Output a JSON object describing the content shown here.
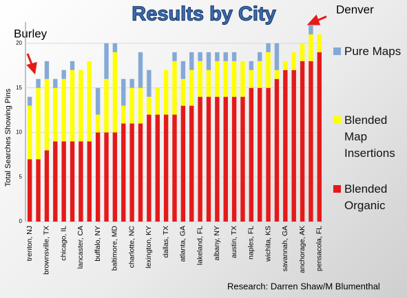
{
  "chart_data": {
    "type": "stacked_bar",
    "title": "Results by City",
    "y_label": "Total Searches Showing Pins",
    "annotations": [
      "Denver",
      "Burley",
      "Research: Darren Shaw/M Blumenthal"
    ],
    "categories": [
      "trenton, NJ",
      null,
      "brownsville, TX",
      null,
      "chicago, IL",
      null,
      "lancaster, CA",
      null,
      "buffalo, NY",
      null,
      "baltimore, MD",
      null,
      "charlotte, NC",
      null,
      "lexington, KY",
      null,
      "dallas, TX",
      null,
      "atlanta, GA",
      null,
      "lakeland, FL",
      null,
      "albany, NY",
      null,
      "austin, TX",
      null,
      "naples, FL",
      null,
      "wichita, KS",
      null,
      "savannah, GA",
      null,
      "anchorage, AK",
      null,
      "pensacola, FL"
    ],
    "series": [
      {
        "name": "Blended Organic",
        "color": "#e41a1a",
        "values": [
          7,
          7,
          8,
          9,
          9,
          9,
          9,
          9,
          10,
          10,
          10,
          11,
          11,
          11,
          12,
          12,
          12,
          12,
          13,
          13,
          14,
          14,
          14,
          14,
          14,
          14,
          15,
          15,
          15,
          16,
          17,
          17,
          18,
          18,
          19
        ]
      },
      {
        "name": "Blended Map Insertions",
        "color": "#ffff00",
        "values": [
          6,
          8,
          8,
          6,
          7,
          8,
          8,
          9,
          2,
          6,
          9,
          2,
          4,
          4,
          2,
          3,
          5,
          6,
          3,
          4,
          4,
          3,
          4,
          4,
          4,
          4,
          2,
          3,
          4,
          1,
          1,
          2,
          2,
          3,
          2
        ]
      },
      {
        "name": "Pure Maps",
        "color": "#85a9d6",
        "values": [
          1,
          1,
          2,
          1,
          1,
          1,
          0,
          0,
          3,
          4,
          1,
          3,
          1,
          4,
          3,
          0,
          0,
          1,
          2,
          2,
          1,
          2,
          1,
          1,
          1,
          0,
          1,
          1,
          1,
          3,
          0,
          0,
          0,
          1,
          0
        ]
      }
    ],
    "ylim": [
      0,
      22
    ],
    "yticks": [
      0,
      5,
      10,
      15,
      20
    ],
    "grid": true
  }
}
